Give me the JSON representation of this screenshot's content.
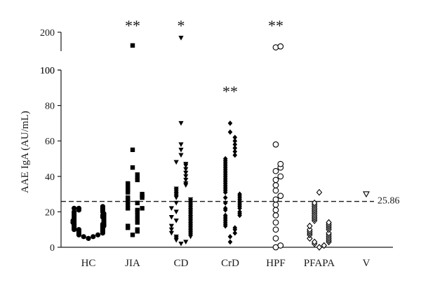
{
  "chart_data": {
    "type": "scatter",
    "ylabel": "AAE IgA (AU/mL)",
    "categories": [
      "HC",
      "JIA",
      "CD",
      "CrD",
      "HPF",
      "PFAPA",
      "V"
    ],
    "y_ticks_lower": [
      "0",
      "20",
      "40",
      "60",
      "80",
      "100"
    ],
    "y_ticks_upper": [
      "100",
      "200"
    ],
    "ylim_lower": [
      0,
      100
    ],
    "ylim_upper": [
      100,
      200
    ],
    "axis_break": true,
    "reference_line": {
      "value": 25.86,
      "label": "25.86"
    },
    "significance": [
      "",
      "**",
      "*",
      "**",
      "**",
      "",
      ""
    ],
    "series": [
      {
        "marker": "circle-filled",
        "values": [
          5,
          6,
          6,
          7,
          7,
          8,
          8,
          9,
          9,
          10,
          10,
          10,
          11,
          11,
          12,
          12,
          12,
          13,
          13,
          13,
          14,
          14,
          14,
          15,
          15,
          15,
          16,
          16,
          17,
          17,
          17,
          18,
          18,
          18,
          19,
          19,
          20,
          20,
          21,
          21,
          22,
          22,
          22,
          23
        ]
      },
      {
        "marker": "square-filled",
        "values": [
          7,
          9,
          10,
          11,
          12,
          14,
          16,
          18,
          20,
          21,
          22,
          22,
          24,
          25,
          26,
          27,
          28,
          28,
          29,
          30,
          31,
          32,
          33,
          34,
          35,
          36,
          38,
          39,
          41,
          45,
          55,
          130
        ]
      },
      {
        "marker": "triangle-down-filled",
        "values": [
          2,
          3,
          4,
          5,
          6,
          6,
          7,
          8,
          8,
          9,
          10,
          10,
          11,
          12,
          12,
          13,
          14,
          15,
          15,
          16,
          17,
          17,
          18,
          19,
          20,
          20,
          21,
          22,
          22,
          23,
          24,
          25,
          25,
          26,
          27,
          28,
          29,
          30,
          31,
          32,
          33,
          35,
          36,
          38,
          40,
          42,
          44,
          46,
          47,
          48,
          52,
          55,
          58,
          70,
          170
        ]
      },
      {
        "marker": "diamond-filled",
        "values": [
          3,
          6,
          8,
          10,
          11,
          12,
          13,
          14,
          15,
          16,
          17,
          18,
          18,
          19,
          20,
          21,
          22,
          22,
          23,
          24,
          25,
          25,
          26,
          27,
          28,
          28,
          29,
          30,
          31,
          32,
          33,
          34,
          35,
          36,
          37,
          38,
          39,
          40,
          41,
          42,
          43,
          44,
          45,
          46,
          47,
          48,
          49,
          50,
          52,
          54,
          56,
          58,
          60,
          62,
          65,
          70
        ]
      },
      {
        "marker": "circle-open",
        "values": [
          0,
          1,
          5,
          10,
          14,
          18,
          21,
          24,
          27,
          29,
          32,
          35,
          38,
          40,
          43,
          45,
          47,
          58,
          120,
          125
        ]
      },
      {
        "marker": "diamond-open",
        "values": [
          0,
          1,
          2,
          3,
          3,
          4,
          5,
          5,
          6,
          7,
          7,
          8,
          8,
          9,
          10,
          10,
          11,
          12,
          12,
          13,
          14,
          15,
          16,
          17,
          18,
          19,
          20,
          21,
          22,
          23,
          24,
          25,
          31
        ]
      },
      {
        "marker": "triangle-down-open",
        "values": [
          30
        ]
      }
    ]
  }
}
